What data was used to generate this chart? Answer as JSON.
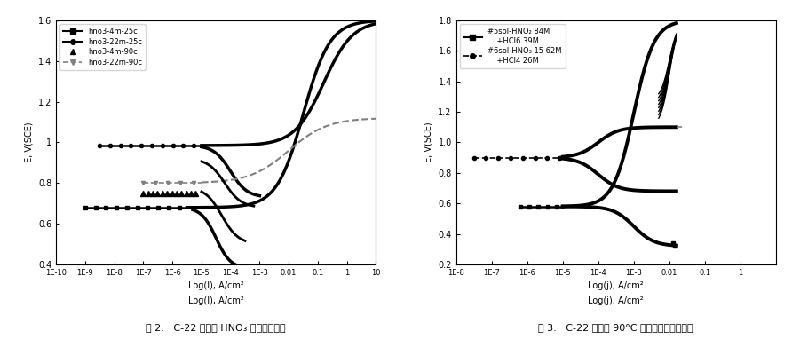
{
  "fig1": {
    "xlabel": "Log(I), A/cm²",
    "ylabel": "E, V(SCE)",
    "caption": "图 2.   C-22 合金在 HNO₃ 中的极化曲线",
    "xlim_log": [
      -10,
      1
    ],
    "ylim": [
      0.4,
      1.6
    ],
    "xtick_vals": [
      -10,
      -9,
      -8,
      -7,
      -6,
      -5,
      -4,
      -3,
      -2,
      -1,
      0,
      1
    ],
    "xtick_labels": [
      "1E-10",
      "1E-9",
      "1E-8",
      "1E-7",
      "1E-6",
      "1E-5",
      "1E-4",
      "1E-3",
      "0.01",
      "0.1",
      "1",
      "10"
    ],
    "yticks": [
      0.4,
      0.6,
      0.8,
      1.0,
      1.2,
      1.4,
      1.6
    ],
    "legend": [
      "hno3-4m-25c",
      "hno3-22m-25c",
      "hno3-4m-90c",
      "hno3-22m-90c"
    ]
  },
  "fig2": {
    "xlabel": "Log(j), A/cm²",
    "ylabel": "E, V(SCE)",
    "caption": "图 3.   C-22 合金在 90°C 混合酸中的极化曲线",
    "xlim_log": [
      -8,
      1
    ],
    "ylim": [
      0.2,
      1.8
    ],
    "xtick_vals": [
      -8,
      -7,
      -6,
      -5,
      -4,
      -3,
      -2,
      -1,
      0
    ],
    "xtick_labels": [
      "1E-8",
      "1E-7",
      "1E-6",
      "1E-5",
      "1E-4",
      "1E-3",
      "0.01",
      "0.1",
      "1"
    ],
    "yticks": [
      0.2,
      0.4,
      0.6,
      0.8,
      1.0,
      1.2,
      1.4,
      1.6,
      1.8
    ],
    "legend": [
      "#5sol-HNO₂ 84M\n    +HCl6 39M",
      "#6sol-HNO₃ 15 62M\n    +HCl4 26M"
    ]
  }
}
